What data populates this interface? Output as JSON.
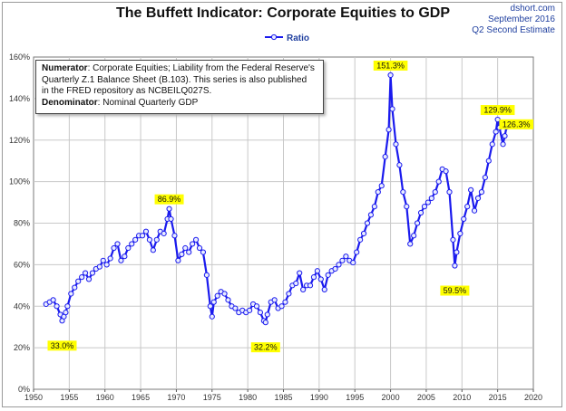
{
  "title": "The Buffett Indicator: Corporate Equities to GDP",
  "credit": {
    "site": "dshort.com",
    "date": "September 2016",
    "estimate": "Q2 Second Estimate"
  },
  "note": {
    "numerator_label": "Numerator",
    "numerator_line1": ": Corporate Equities; Liability from the Federal Reserve's",
    "numerator_line2": "Quarterly Z.1 Balance Sheet (B.103). This series is also published",
    "numerator_line3": "in the FRED repository  as NCBEILQ027S.",
    "denominator_label": "Denominator",
    "denominator_text": ": Nominal Quarterly GDP"
  },
  "colors": {
    "line": "#1a1aee",
    "marker_fill": "#e8ecff",
    "grid": "#c8c8c8",
    "annotation_bg": "#ffff00"
  },
  "chart_data": {
    "type": "line",
    "title": "The Buffett Indicator: Corporate Equities to GDP",
    "xlabel": "",
    "ylabel": "",
    "xlim": [
      1950,
      2020
    ],
    "ylim": [
      0,
      160
    ],
    "x_ticks": [
      "1950",
      "1955",
      "1960",
      "1965",
      "1970",
      "1975",
      "1980",
      "1985",
      "1990",
      "1995",
      "2000",
      "2005",
      "2010",
      "2015",
      "2020"
    ],
    "y_ticks": [
      "0%",
      "20%",
      "40%",
      "60%",
      "80%",
      "100%",
      "120%",
      "140%",
      "160%"
    ],
    "legend": {
      "position": "top-center",
      "entries": [
        "Ratio"
      ]
    },
    "grid": true,
    "series": [
      {
        "name": "Ratio",
        "points": [
          [
            1951.75,
            41
          ],
          [
            1952.25,
            42
          ],
          [
            1952.75,
            43
          ],
          [
            1953.25,
            40
          ],
          [
            1953.75,
            36
          ],
          [
            1954.0,
            33.0
          ],
          [
            1954.25,
            35
          ],
          [
            1954.5,
            37
          ],
          [
            1954.75,
            40
          ],
          [
            1955.25,
            46
          ],
          [
            1955.75,
            49
          ],
          [
            1956.25,
            52
          ],
          [
            1956.75,
            54
          ],
          [
            1957.25,
            56
          ],
          [
            1957.75,
            53
          ],
          [
            1958.25,
            56
          ],
          [
            1958.75,
            58
          ],
          [
            1959.25,
            59
          ],
          [
            1959.75,
            62
          ],
          [
            1960.25,
            60
          ],
          [
            1960.75,
            63
          ],
          [
            1961.25,
            68
          ],
          [
            1961.75,
            70
          ],
          [
            1962.25,
            62
          ],
          [
            1962.75,
            64
          ],
          [
            1963.25,
            68
          ],
          [
            1963.75,
            70
          ],
          [
            1964.25,
            72
          ],
          [
            1964.75,
            74
          ],
          [
            1965.25,
            74
          ],
          [
            1965.75,
            76
          ],
          [
            1966.25,
            72
          ],
          [
            1966.75,
            67
          ],
          [
            1967.25,
            72
          ],
          [
            1967.75,
            76
          ],
          [
            1968.25,
            75
          ],
          [
            1968.75,
            82
          ],
          [
            1969.0,
            86.9
          ],
          [
            1969.25,
            82
          ],
          [
            1969.75,
            74
          ],
          [
            1970.25,
            62
          ],
          [
            1970.75,
            65
          ],
          [
            1971.25,
            68
          ],
          [
            1971.75,
            66
          ],
          [
            1972.25,
            70
          ],
          [
            1972.75,
            72
          ],
          [
            1973.25,
            68
          ],
          [
            1973.75,
            66
          ],
          [
            1974.25,
            55
          ],
          [
            1974.75,
            40
          ],
          [
            1975.0,
            35
          ],
          [
            1975.25,
            42
          ],
          [
            1975.75,
            45
          ],
          [
            1976.25,
            47
          ],
          [
            1976.75,
            46
          ],
          [
            1977.25,
            43
          ],
          [
            1977.75,
            40
          ],
          [
            1978.25,
            39
          ],
          [
            1978.75,
            37
          ],
          [
            1979.25,
            38
          ],
          [
            1979.75,
            37
          ],
          [
            1980.25,
            38
          ],
          [
            1980.75,
            41
          ],
          [
            1981.25,
            40
          ],
          [
            1981.75,
            37
          ],
          [
            1982.25,
            33
          ],
          [
            1982.5,
            32.2
          ],
          [
            1982.75,
            36
          ],
          [
            1983.25,
            42
          ],
          [
            1983.75,
            43
          ],
          [
            1984.25,
            39
          ],
          [
            1984.75,
            40
          ],
          [
            1985.25,
            42
          ],
          [
            1985.75,
            46
          ],
          [
            1986.25,
            50
          ],
          [
            1986.75,
            51
          ],
          [
            1987.25,
            56
          ],
          [
            1987.75,
            48
          ],
          [
            1988.25,
            50
          ],
          [
            1988.75,
            50
          ],
          [
            1989.25,
            54
          ],
          [
            1989.75,
            57
          ],
          [
            1990.25,
            53
          ],
          [
            1990.75,
            48
          ],
          [
            1991.25,
            55
          ],
          [
            1991.75,
            57
          ],
          [
            1992.25,
            58
          ],
          [
            1992.75,
            60
          ],
          [
            1993.25,
            62
          ],
          [
            1993.75,
            64
          ],
          [
            1994.25,
            62
          ],
          [
            1994.75,
            61
          ],
          [
            1995.25,
            66
          ],
          [
            1995.75,
            72
          ],
          [
            1996.25,
            75
          ],
          [
            1996.75,
            80
          ],
          [
            1997.25,
            84
          ],
          [
            1997.75,
            88
          ],
          [
            1998.25,
            95
          ],
          [
            1998.75,
            98
          ],
          [
            1999.25,
            112
          ],
          [
            1999.75,
            125
          ],
          [
            2000.0,
            151.3
          ],
          [
            2000.25,
            135
          ],
          [
            2000.75,
            118
          ],
          [
            2001.25,
            108
          ],
          [
            2001.75,
            95
          ],
          [
            2002.25,
            88
          ],
          [
            2002.75,
            70
          ],
          [
            2003.25,
            74
          ],
          [
            2003.75,
            80
          ],
          [
            2004.25,
            85
          ],
          [
            2004.75,
            88
          ],
          [
            2005.25,
            90
          ],
          [
            2005.75,
            92
          ],
          [
            2006.25,
            95
          ],
          [
            2006.75,
            100
          ],
          [
            2007.25,
            106
          ],
          [
            2007.75,
            105
          ],
          [
            2008.25,
            95
          ],
          [
            2008.75,
            72
          ],
          [
            2009.0,
            59.5
          ],
          [
            2009.25,
            66
          ],
          [
            2009.75,
            75
          ],
          [
            2010.25,
            82
          ],
          [
            2010.75,
            88
          ],
          [
            2011.25,
            96
          ],
          [
            2011.75,
            86
          ],
          [
            2012.25,
            92
          ],
          [
            2012.75,
            95
          ],
          [
            2013.25,
            102
          ],
          [
            2013.75,
            110
          ],
          [
            2014.25,
            118
          ],
          [
            2014.75,
            124
          ],
          [
            2015.0,
            129.9
          ],
          [
            2015.25,
            126
          ],
          [
            2015.75,
            118
          ],
          [
            2016.0,
            122
          ],
          [
            2016.25,
            126.3
          ]
        ]
      }
    ],
    "annotations": [
      {
        "label": "33.0%",
        "x": 1954.0,
        "y": 33.0,
        "pos": "below"
      },
      {
        "label": "86.9%",
        "x": 1969.0,
        "y": 86.9,
        "pos": "above"
      },
      {
        "label": "32.2%",
        "x": 1982.5,
        "y": 32.2,
        "pos": "below"
      },
      {
        "label": "151.3%",
        "x": 2000.0,
        "y": 151.3,
        "pos": "above"
      },
      {
        "label": "59.5%",
        "x": 2009.0,
        "y": 59.5,
        "pos": "below"
      },
      {
        "label": "129.9%",
        "x": 2015.0,
        "y": 129.9,
        "pos": "above"
      },
      {
        "label": "126.3%",
        "x": 2016.25,
        "y": 126.3,
        "pos": "right"
      }
    ]
  }
}
